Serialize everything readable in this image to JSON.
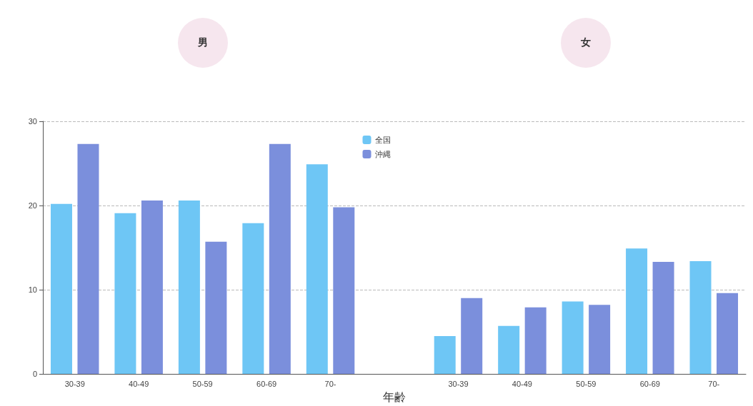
{
  "chart_data": {
    "type": "bar",
    "xlabel": "年齢",
    "annotations": [
      "男",
      "女"
    ],
    "categories": [
      "30-39",
      "40-49",
      "50-59",
      "60-69",
      "70-",
      null,
      "30-39",
      "40-49",
      "50-59",
      "60-69",
      "70-"
    ],
    "series": [
      {
        "name": "全国",
        "color": "#6ec6f5",
        "values": [
          20.2,
          19.1,
          20.6,
          17.9,
          24.9,
          null,
          4.5,
          5.7,
          8.6,
          14.9,
          13.4
        ]
      },
      {
        "name": "沖縄",
        "color": "#7b8fdc",
        "values": [
          27.3,
          20.6,
          15.7,
          27.3,
          19.8,
          null,
          9.0,
          7.9,
          8.2,
          13.3,
          9.6
        ]
      }
    ],
    "ylim": [
      0,
      30
    ],
    "yticks": [
      0,
      10,
      20,
      30
    ],
    "grid": "y",
    "legend": "top"
  }
}
